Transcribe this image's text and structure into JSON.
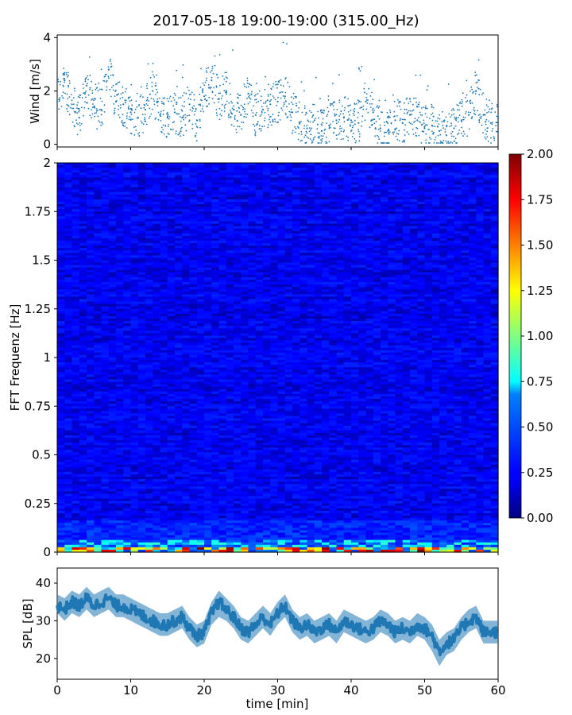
{
  "figure": {
    "title": "2017-05-18 19:00-19:00 (315.00_Hz)"
  },
  "chart_data": [
    {
      "id": "wind",
      "type": "scatter",
      "ylabel": "Wind [m/s]",
      "xlim": [
        0,
        60
      ],
      "ylim": [
        -0.1,
        4.1
      ],
      "y_ticks": [
        "0",
        "2",
        "4"
      ],
      "series": [
        {
          "color": "#1f77b4",
          "x": [
            0,
            1,
            2,
            3,
            4,
            5,
            6,
            7,
            8,
            9,
            10,
            11,
            12,
            13,
            14,
            15,
            16,
            17,
            18,
            19,
            20,
            21,
            22,
            23,
            24,
            25,
            26,
            27,
            28,
            29,
            30,
            31,
            32,
            33,
            34,
            35,
            36,
            37,
            38,
            39,
            40,
            41,
            42,
            43,
            44,
            45,
            46,
            47,
            48,
            49,
            50,
            51,
            52,
            53,
            54,
            55,
            56,
            57,
            58,
            59,
            60
          ],
          "y": [
            1.6,
            2.4,
            1.5,
            1.0,
            2.2,
            1.4,
            1.3,
            2.8,
            1.6,
            1.5,
            1.2,
            1.0,
            1.3,
            2.0,
            1.1,
            1.0,
            1.2,
            1.0,
            1.5,
            0.9,
            1.8,
            2.4,
            1.7,
            2.0,
            1.3,
            1.1,
            1.9,
            1.1,
            1.3,
            1.5,
            1.6,
            1.8,
            1.2,
            0.8,
            0.6,
            0.9,
            0.5,
            0.7,
            0.9,
            1.0,
            0.9,
            0.8,
            1.6,
            1.2,
            0.6,
            0.5,
            0.9,
            0.8,
            1.1,
            0.9,
            0.6,
            0.7,
            0.5,
            0.7,
            0.6,
            0.9,
            1.1,
            2.0,
            1.1,
            0.8,
            1.0
          ]
        }
      ]
    },
    {
      "id": "spectrogram",
      "type": "heatmap",
      "ylabel": "FFT Frequenz [Hz]",
      "xlim": [
        0,
        60
      ],
      "ylim": [
        0,
        2
      ],
      "y_ticks": [
        "0",
        "0.25",
        "0.5",
        "0.75",
        "1",
        "1.25",
        "1.5",
        "1.75",
        "2"
      ],
      "colormap": "jet",
      "colorbar": {
        "range": [
          0,
          2
        ],
        "ticks": [
          "0.00",
          "0.25",
          "0.50",
          "0.75",
          "1.00",
          "1.25",
          "1.50",
          "1.75",
          "2.00"
        ]
      },
      "description_levels": {
        "background": 0.2,
        "low_freq_band_max": 2.0
      }
    },
    {
      "id": "spl",
      "type": "area",
      "ylabel": "SPL [dB]",
      "xlabel": "time [min]",
      "xlim": [
        0,
        60
      ],
      "ylim": [
        14.5,
        44
      ],
      "y_ticks": [
        "20",
        "30",
        "40"
      ],
      "x_ticks": [
        "0",
        "10",
        "20",
        "30",
        "40",
        "50",
        "60"
      ],
      "series": [
        {
          "color": "#1f77b4",
          "x": [
            0,
            1,
            2,
            3,
            4,
            5,
            6,
            7,
            8,
            9,
            10,
            11,
            12,
            13,
            14,
            15,
            16,
            17,
            18,
            19,
            20,
            21,
            22,
            23,
            24,
            25,
            26,
            27,
            28,
            29,
            30,
            31,
            32,
            33,
            34,
            35,
            36,
            37,
            38,
            39,
            40,
            41,
            42,
            43,
            44,
            45,
            46,
            47,
            48,
            49,
            50,
            51,
            52,
            53,
            54,
            55,
            56,
            57,
            58,
            59,
            60
          ],
          "y_mean": [
            34,
            33,
            35,
            34,
            36,
            34,
            35,
            36,
            34,
            34,
            33,
            32,
            31,
            30,
            29,
            29,
            30,
            31,
            28,
            26,
            27,
            32,
            35,
            33,
            31,
            28,
            27,
            29,
            31,
            29,
            32,
            34,
            30,
            28,
            29,
            27,
            28,
            29,
            27,
            30,
            29,
            28,
            27,
            28,
            30,
            29,
            27,
            28,
            27,
            29,
            28,
            26,
            22,
            24,
            25,
            28,
            30,
            31,
            27,
            27,
            27
          ],
          "y_low": [
            32,
            30,
            32,
            31,
            33,
            31,
            32,
            33,
            31,
            31,
            30,
            29,
            28,
            27,
            26,
            26,
            27,
            28,
            25,
            23,
            24,
            29,
            31,
            30,
            28,
            25,
            24,
            26,
            28,
            26,
            29,
            31,
            27,
            25,
            26,
            24,
            25,
            26,
            24,
            27,
            26,
            25,
            24,
            25,
            27,
            26,
            24,
            25,
            24,
            26,
            25,
            22,
            18,
            21,
            22,
            25,
            27,
            28,
            24,
            24,
            24
          ],
          "y_high": [
            37,
            36,
            38,
            37,
            39,
            37,
            38,
            39,
            37,
            37,
            36,
            35,
            34,
            33,
            32,
            32,
            33,
            34,
            31,
            29,
            30,
            35,
            38,
            36,
            34,
            31,
            30,
            32,
            34,
            32,
            35,
            37,
            33,
            31,
            32,
            30,
            31,
            32,
            30,
            33,
            32,
            31,
            30,
            31,
            33,
            32,
            30,
            31,
            30,
            32,
            31,
            29,
            25,
            27,
            28,
            31,
            33,
            34,
            30,
            30,
            30
          ]
        }
      ]
    }
  ]
}
